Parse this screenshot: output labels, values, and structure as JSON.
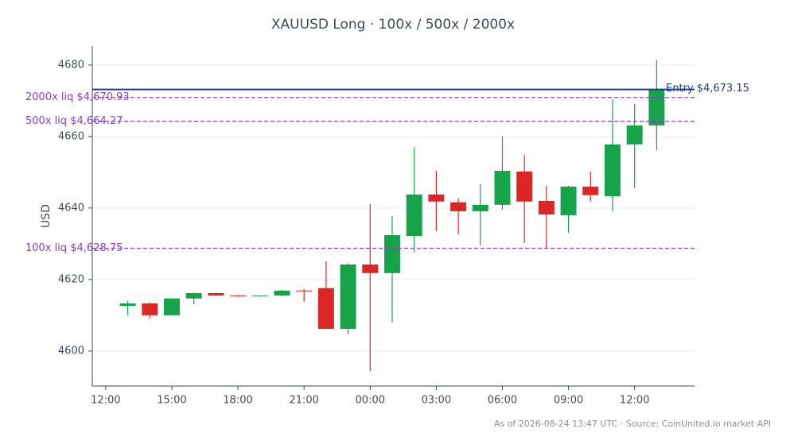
{
  "chart_data": {
    "type": "candlestick",
    "title": "XAUUSD Long · 100x / 500x / 2000x",
    "y_label": "USD",
    "footnote": "As of 2026-08-24 13:47 UTC · Source: CoinUnited.io market API",
    "x": [
      13,
      14,
      15,
      16,
      17,
      18,
      19,
      20,
      21,
      22,
      23,
      24,
      25,
      26,
      27,
      28,
      29,
      30,
      31,
      32,
      33,
      34,
      35,
      36,
      37
    ],
    "open": [
      4612.6,
      4613.3,
      4610.0,
      4614.7,
      4616.2,
      4615.5,
      4615.3,
      4615.5,
      4616.9,
      4617.6,
      4606.2,
      4624.2,
      4621.8,
      4632.2,
      4643.8,
      4641.6,
      4639.1,
      4640.9,
      4650.2,
      4642.0,
      4638.0,
      4646.0,
      4643.3,
      4657.8,
      4663.1
    ],
    "high": [
      4614.0,
      4613.5,
      4614.7,
      4616.4,
      4616.3,
      4615.7,
      4615.6,
      4617.0,
      4617.3,
      4625.1,
      4624.5,
      4641.1,
      4637.8,
      4656.9,
      4650.4,
      4642.7,
      4646.7,
      4660.0,
      4654.9,
      4646.2,
      4646.2,
      4650.2,
      4670.4,
      4669.1,
      4681.3
    ],
    "low": [
      4610.0,
      4609.1,
      4610.0,
      4613.1,
      4615.4,
      4615.1,
      4615.2,
      4615.4,
      4613.8,
      4606.2,
      4604.7,
      4594.4,
      4608.0,
      4627.6,
      4633.6,
      4632.7,
      4629.6,
      4639.6,
      4630.2,
      4628.7,
      4633.1,
      4641.8,
      4639.1,
      4645.6,
      4656.2
    ],
    "close": [
      4613.3,
      4610.0,
      4614.7,
      4616.2,
      4615.5,
      4615.3,
      4615.5,
      4616.9,
      4616.7,
      4606.2,
      4624.2,
      4621.8,
      4632.4,
      4643.8,
      4641.8,
      4639.1,
      4640.9,
      4650.4,
      4641.8,
      4638.2,
      4646.0,
      4643.6,
      4657.8,
      4663.1,
      4673.1
    ],
    "up_color": "#16a34a",
    "down_color": "#dc2626",
    "xlim": [
      11.39,
      38.72
    ],
    "ylim": [
      4590.2,
      4685.3
    ],
    "xticks": [
      {
        "value": 12,
        "label": "12:00"
      },
      {
        "value": 15,
        "label": "15:00"
      },
      {
        "value": 18,
        "label": "18:00"
      },
      {
        "value": 21,
        "label": "21:00"
      },
      {
        "value": 24,
        "label": "00:00"
      },
      {
        "value": 27,
        "label": "03:00"
      },
      {
        "value": 30,
        "label": "06:00"
      },
      {
        "value": 33,
        "label": "09:00"
      },
      {
        "value": 36,
        "label": "12:00"
      }
    ],
    "yticks": [
      4600,
      4620,
      4640,
      4660,
      4680
    ],
    "grid": true,
    "hlines": [
      {
        "label": "Entry $4,673.15",
        "value": 4673.15,
        "color": "#1e3a8a",
        "style": "solid"
      },
      {
        "label": "2000x liq $4,670.93",
        "value": 4670.93,
        "color": "#8b3fc9",
        "style": "dashed"
      },
      {
        "label": "500x liq $4,664.27",
        "value": 4664.27,
        "color": "#8b3fc9",
        "style": "dashed"
      },
      {
        "label": "100x liq $4,628.75",
        "value": 4628.75,
        "color": "#8b3fc9",
        "style": "dashed"
      }
    ]
  }
}
